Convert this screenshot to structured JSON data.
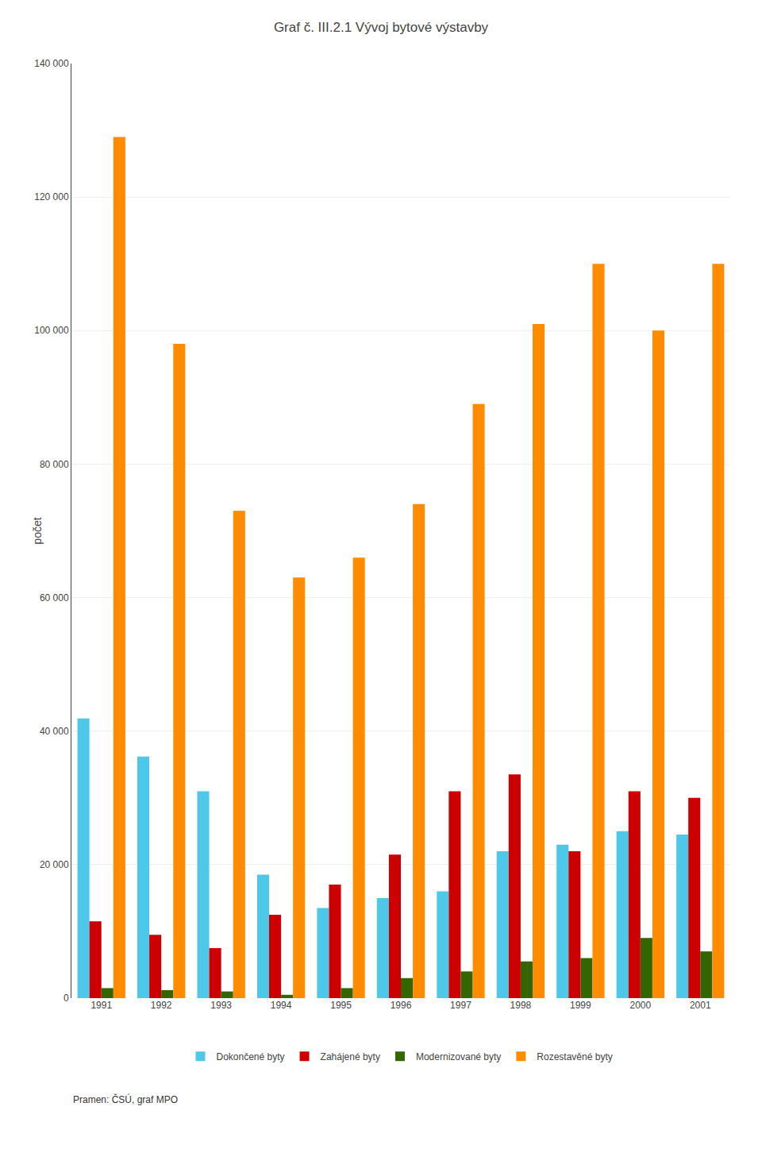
{
  "chart_data": {
    "type": "bar",
    "title": "Graf č. III.2.1 Vývoj bytové výstavby",
    "ylabel": "počet",
    "categories": [
      "1991",
      "1992",
      "1993",
      "1994",
      "1995",
      "1996",
      "1997",
      "1998",
      "1999",
      "2000",
      "2001"
    ],
    "series": [
      {
        "name": "Dokončené byty",
        "color": "#4DC8E8",
        "values": [
          41900,
          36200,
          31000,
          18500,
          13500,
          15000,
          16000,
          22000,
          23000,
          25000,
          24500
        ]
      },
      {
        "name": "Zahájené byty",
        "color": "#CC0000",
        "values": [
          11500,
          9500,
          7500,
          12500,
          17000,
          21500,
          31000,
          33500,
          22000,
          31000,
          30000
        ]
      },
      {
        "name": "Modernizované byty",
        "color": "#336600",
        "values": [
          1500,
          1200,
          1000,
          500,
          1500,
          3000,
          4000,
          5500,
          6000,
          9000,
          7000
        ]
      },
      {
        "name": "Rozestavěné byty",
        "color": "#FF8C00",
        "values": [
          129000,
          98000,
          73000,
          63000,
          66000,
          74000,
          89000,
          101000,
          110000,
          100000,
          110000
        ]
      }
    ],
    "ylim": [
      0,
      140000
    ],
    "yticks": [
      0,
      {
        "value": 20000,
        "label": "20 000"
      },
      {
        "value": 40000,
        "label": "40 000"
      },
      {
        "value": 60000,
        "label": "60 000"
      },
      {
        "value": 80000,
        "label": "80 000"
      },
      {
        "value": 100000,
        "label": "100 000"
      },
      {
        "value": 120000,
        "label": "120 000"
      },
      {
        "value": 140000,
        "label": "140 000"
      }
    ],
    "grid": true,
    "legend": "bottom",
    "annotations": [
      "Pramen: ČSÚ, graf MPO"
    ]
  }
}
